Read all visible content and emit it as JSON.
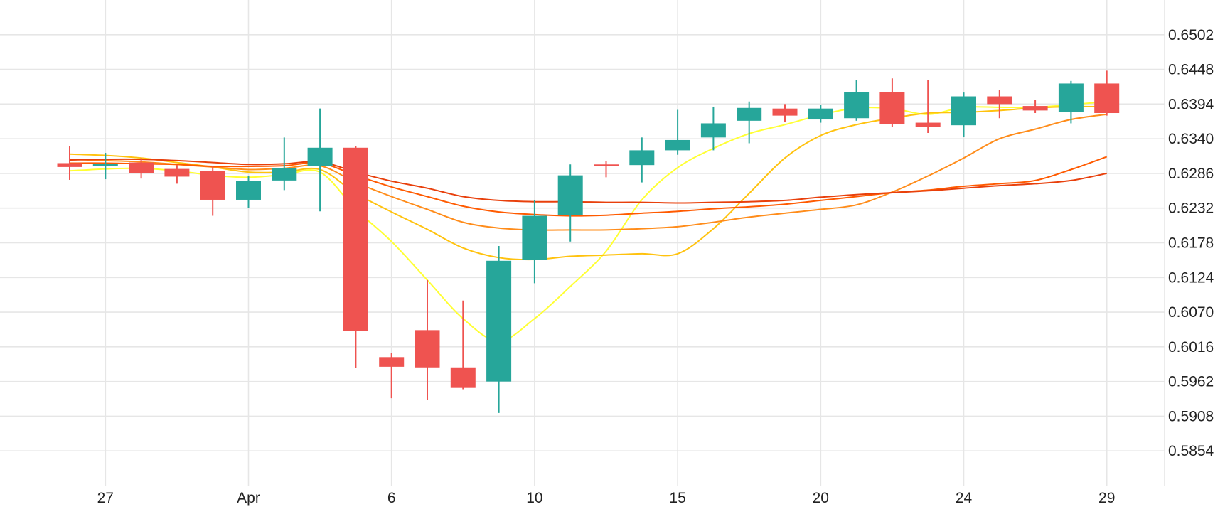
{
  "chart_data": {
    "type": "candlestick",
    "title": "",
    "xlabel": "",
    "ylabel": "",
    "grid": true,
    "legend": "none",
    "ylim": [
      0.58,
      0.6556
    ],
    "y_ticks": [
      "0.6502",
      "0.6448",
      "0.6394",
      "0.6340",
      "0.6286",
      "0.6232",
      "0.6178",
      "0.6124",
      "0.6070",
      "0.6016",
      "0.5962",
      "0.5908",
      "0.5854"
    ],
    "y_tick_values": [
      0.6502,
      0.6448,
      0.6394,
      0.634,
      0.6286,
      0.6232,
      0.6178,
      0.6124,
      0.607,
      0.6016,
      0.5962,
      0.5908,
      0.5854
    ],
    "x_ticks": [
      "27",
      "Apr",
      "6",
      "10",
      "15",
      "20",
      "24",
      "29"
    ],
    "x_tick_index": [
      1,
      5,
      9,
      13,
      17,
      21,
      25,
      29
    ],
    "colors": {
      "up": "#26a69a",
      "down": "#ef5350",
      "grid": "#e6e6e6"
    },
    "candles": [
      {
        "o": 0.6302,
        "h": 0.6328,
        "l": 0.6276,
        "c": 0.6296
      },
      {
        "o": 0.6298,
        "h": 0.6318,
        "l": 0.6277,
        "c": 0.6301
      },
      {
        "o": 0.6303,
        "h": 0.631,
        "l": 0.6278,
        "c": 0.6286
      },
      {
        "o": 0.6293,
        "h": 0.6299,
        "l": 0.627,
        "c": 0.6281
      },
      {
        "o": 0.629,
        "h": 0.6298,
        "l": 0.622,
        "c": 0.6245
      },
      {
        "o": 0.6245,
        "h": 0.6282,
        "l": 0.6232,
        "c": 0.6274
      },
      {
        "o": 0.6275,
        "h": 0.6342,
        "l": 0.626,
        "c": 0.6294
      },
      {
        "o": 0.6298,
        "h": 0.6387,
        "l": 0.6227,
        "c": 0.6326
      },
      {
        "o": 0.6326,
        "h": 0.6329,
        "l": 0.5983,
        "c": 0.6041
      },
      {
        "o": 0.6,
        "h": 0.6006,
        "l": 0.5936,
        "c": 0.5985
      },
      {
        "o": 0.6042,
        "h": 0.612,
        "l": 0.5933,
        "c": 0.5984
      },
      {
        "o": 0.5984,
        "h": 0.6088,
        "l": 0.595,
        "c": 0.5952
      },
      {
        "o": 0.5962,
        "h": 0.6173,
        "l": 0.5913,
        "c": 0.615
      },
      {
        "o": 0.6152,
        "h": 0.6244,
        "l": 0.6115,
        "c": 0.622
      },
      {
        "o": 0.6221,
        "h": 0.63,
        "l": 0.618,
        "c": 0.6283
      },
      {
        "o": 0.63,
        "h": 0.6305,
        "l": 0.628,
        "c": 0.6298
      },
      {
        "o": 0.6299,
        "h": 0.6342,
        "l": 0.6272,
        "c": 0.6322
      },
      {
        "o": 0.6322,
        "h": 0.6385,
        "l": 0.6315,
        "c": 0.6338
      },
      {
        "o": 0.6342,
        "h": 0.639,
        "l": 0.6322,
        "c": 0.6364
      },
      {
        "o": 0.6368,
        "h": 0.6398,
        "l": 0.6333,
        "c": 0.6388
      },
      {
        "o": 0.6387,
        "h": 0.6394,
        "l": 0.6366,
        "c": 0.6376
      },
      {
        "o": 0.637,
        "h": 0.6393,
        "l": 0.6365,
        "c": 0.6387
      },
      {
        "o": 0.6372,
        "h": 0.6432,
        "l": 0.6368,
        "c": 0.6413
      },
      {
        "o": 0.6413,
        "h": 0.6434,
        "l": 0.6358,
        "c": 0.6363
      },
      {
        "o": 0.6365,
        "h": 0.6431,
        "l": 0.6349,
        "c": 0.6358
      },
      {
        "o": 0.6361,
        "h": 0.6412,
        "l": 0.6343,
        "c": 0.6406
      },
      {
        "o": 0.6406,
        "h": 0.6416,
        "l": 0.6372,
        "c": 0.6394
      },
      {
        "o": 0.6391,
        "h": 0.64,
        "l": 0.638,
        "c": 0.6384
      },
      {
        "o": 0.6382,
        "h": 0.643,
        "l": 0.6364,
        "c": 0.6426
      },
      {
        "o": 0.6426,
        "h": 0.6446,
        "l": 0.6376,
        "c": 0.638
      }
    ],
    "series": [
      {
        "color": "#ffff33",
        "values": [
          0.629,
          0.6293,
          0.6294,
          0.629,
          0.6283,
          0.628,
          0.6284,
          0.6288,
          0.623,
          0.618,
          0.612,
          0.606,
          0.6025,
          0.606,
          0.611,
          0.6165,
          0.6245,
          0.6295,
          0.6325,
          0.6348,
          0.6362,
          0.6377,
          0.6388,
          0.6387,
          0.6378,
          0.6389,
          0.6389,
          0.6389,
          0.6393,
          0.6398
        ]
      },
      {
        "color": "#ffc20e",
        "values": [
          0.6316,
          0.6314,
          0.631,
          0.6303,
          0.6296,
          0.6288,
          0.6288,
          0.6292,
          0.6255,
          0.6226,
          0.6199,
          0.617,
          0.6155,
          0.6152,
          0.6157,
          0.6159,
          0.6161,
          0.6161,
          0.62,
          0.6255,
          0.631,
          0.6345,
          0.6362,
          0.6372,
          0.638,
          0.6381,
          0.6384,
          0.6388,
          0.639,
          0.639
        ]
      },
      {
        "color": "#ff8c1a",
        "values": [
          0.6308,
          0.6306,
          0.6304,
          0.63,
          0.6296,
          0.6292,
          0.6294,
          0.6298,
          0.6272,
          0.625,
          0.623,
          0.621,
          0.6201,
          0.6198,
          0.6198,
          0.6198,
          0.62,
          0.6203,
          0.621,
          0.6218,
          0.6224,
          0.623,
          0.6237,
          0.6257,
          0.6282,
          0.631,
          0.634,
          0.6355,
          0.637,
          0.6378
        ]
      },
      {
        "color": "#ff5a00",
        "values": [
          0.6302,
          0.6302,
          0.6301,
          0.63,
          0.6297,
          0.6297,
          0.6298,
          0.6302,
          0.6283,
          0.6265,
          0.625,
          0.6235,
          0.6226,
          0.6222,
          0.622,
          0.6221,
          0.6224,
          0.6227,
          0.6231,
          0.6234,
          0.6238,
          0.6244,
          0.625,
          0.6256,
          0.626,
          0.6266,
          0.627,
          0.6275,
          0.6292,
          0.6312
        ]
      },
      {
        "color": "#e8400c",
        "values": [
          0.6307,
          0.6308,
          0.6308,
          0.6306,
          0.6303,
          0.63,
          0.6301,
          0.6304,
          0.6288,
          0.6274,
          0.6263,
          0.625,
          0.6244,
          0.6242,
          0.6242,
          0.6241,
          0.6241,
          0.624,
          0.6241,
          0.6242,
          0.6244,
          0.6249,
          0.6253,
          0.6256,
          0.6259,
          0.6263,
          0.6267,
          0.627,
          0.6275,
          0.6286
        ]
      }
    ]
  }
}
